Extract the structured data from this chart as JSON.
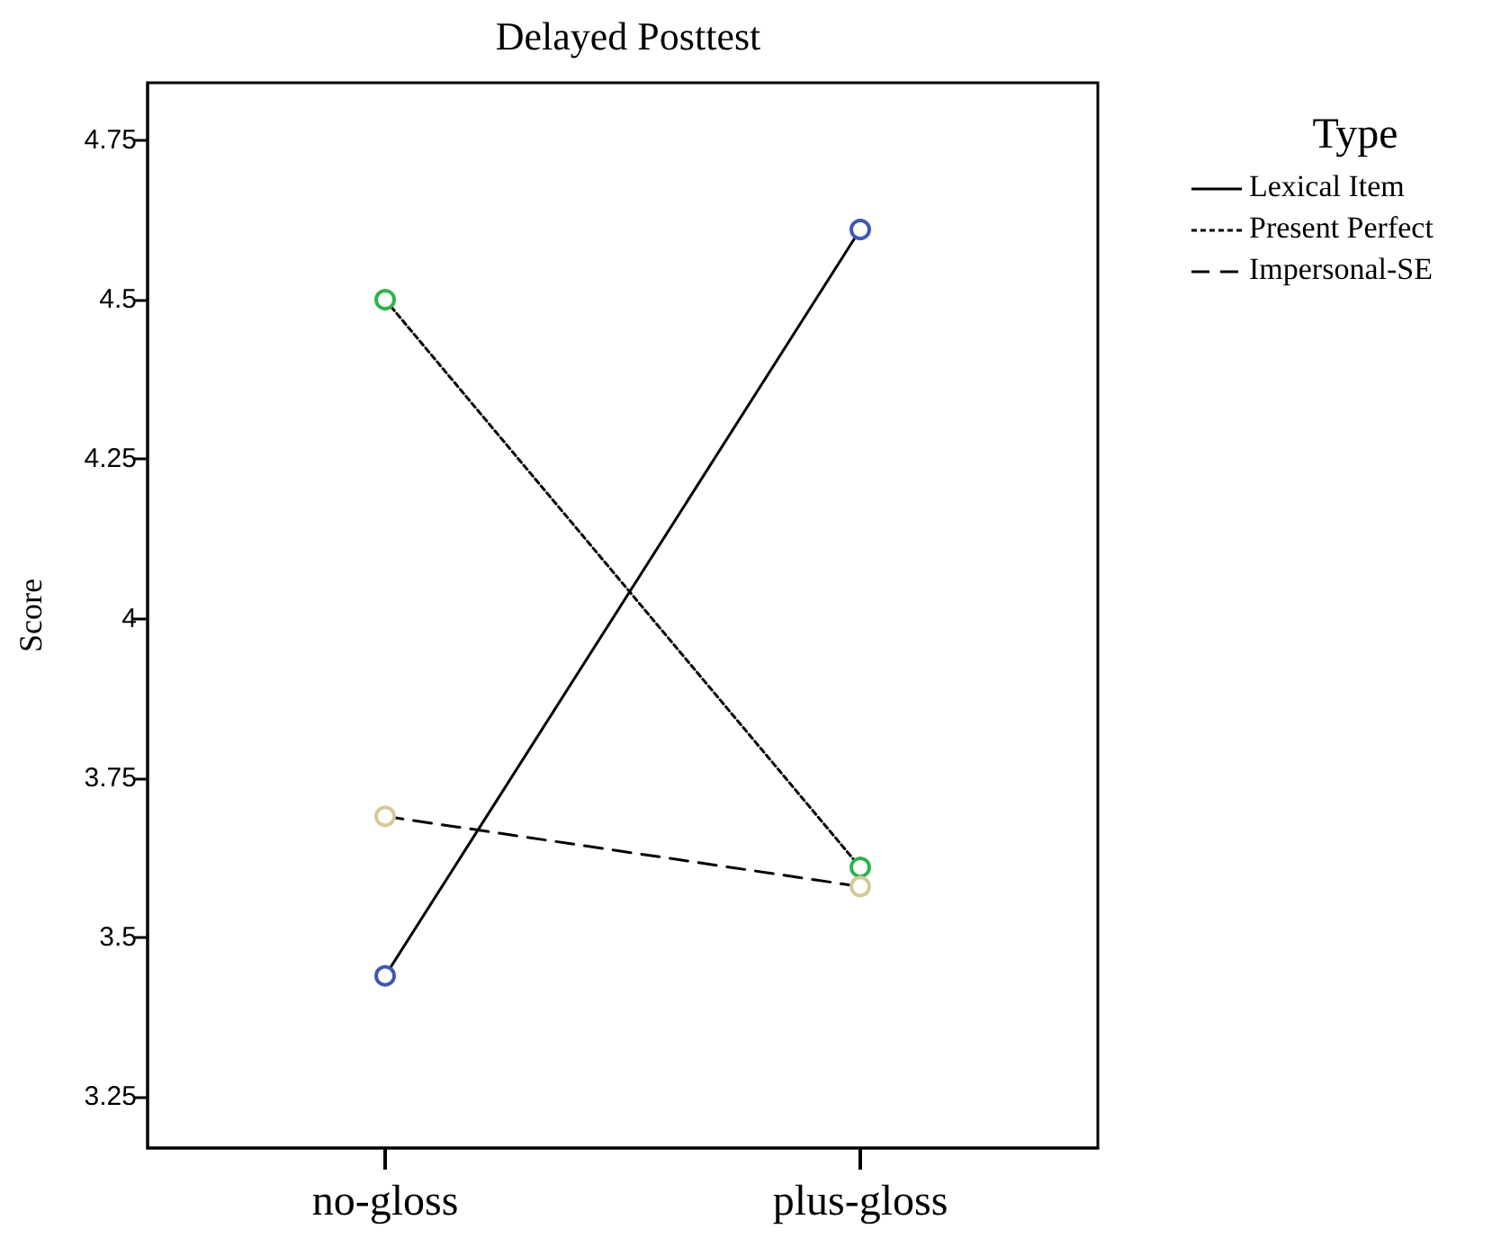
{
  "chart_data": {
    "type": "line",
    "title": "Delayed Posttest",
    "ylabel": "Score",
    "legend_title": "Type",
    "categories": [
      "no-gloss",
      "plus-gloss"
    ],
    "series": [
      {
        "name": "Lexical Item",
        "color": "#000000",
        "colors": [
          "#3f58b0",
          "#3f58b0"
        ],
        "line_style": "solid",
        "values": [
          3.44,
          4.61
        ]
      },
      {
        "name": "Present Perfect",
        "color": "#000000",
        "colors": [
          "#2fb34a",
          "#2fb34a"
        ],
        "line_style": "dotted",
        "values": [
          4.5,
          3.61
        ]
      },
      {
        "name": "Impersonal-SE",
        "color": "#000000",
        "colors": [
          "#d6c89a",
          "#d6c89a"
        ],
        "line_style": "dashed",
        "values": [
          3.69,
          3.58
        ]
      }
    ],
    "ylim": [
      3.17,
      4.84
    ],
    "yticks": [
      {
        "value": 3.25,
        "label": "3.25"
      },
      {
        "value": 3.5,
        "label": "3.5"
      },
      {
        "value": 3.75,
        "label": "3.75"
      },
      {
        "value": 4,
        "label": "4"
      },
      {
        "value": 4.25,
        "label": "4.25"
      },
      {
        "value": 4.5,
        "label": "4.5"
      },
      {
        "value": 4.75,
        "label": "4.75"
      }
    ],
    "grid": false,
    "legend": "right",
    "marker": "circle"
  }
}
